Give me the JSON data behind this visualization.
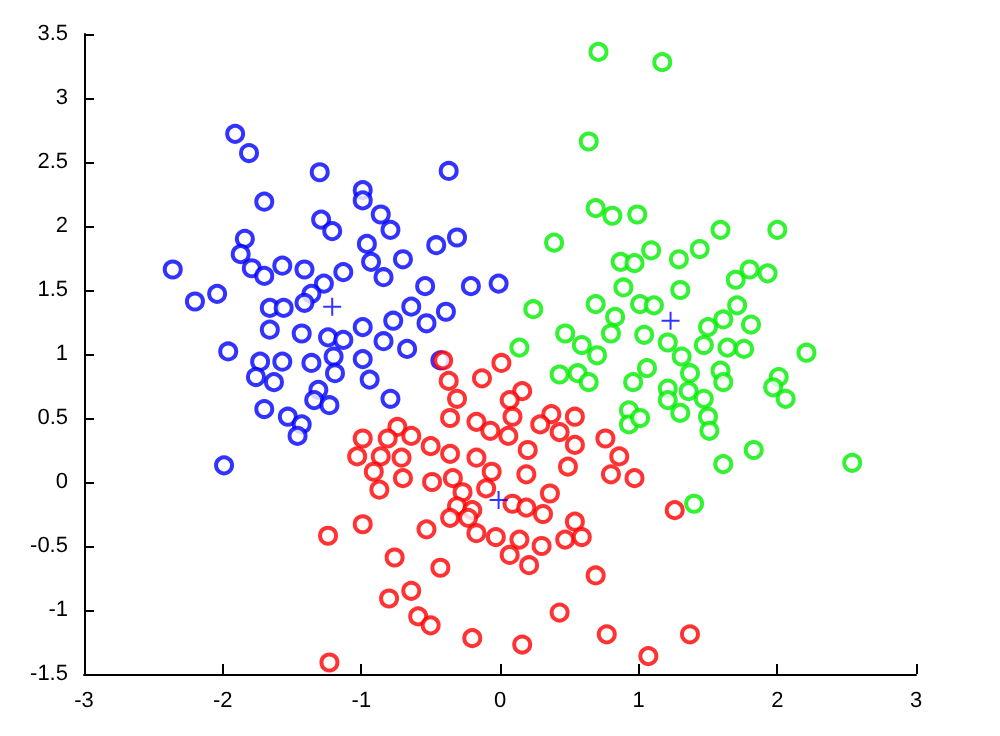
{
  "chart_data": {
    "type": "scatter",
    "xlim": [
      -3,
      3
    ],
    "ylim": [
      -1.5,
      3.5
    ],
    "xticks": [
      -3,
      -2,
      -1,
      0,
      1,
      2,
      3
    ],
    "yticks": [
      -1.5,
      -1,
      -0.5,
      0,
      0.5,
      1,
      1.5,
      2,
      2.5,
      3,
      3.5
    ],
    "marker": "circle",
    "series": [
      {
        "color": "#0000ff",
        "x": [
          -1.91,
          -1.81,
          -1.3,
          -0.37,
          -1.7,
          -0.99,
          -0.99,
          -0.86,
          -1.29,
          -1.21,
          -0.79,
          -1.84,
          -1.87,
          -0.96,
          -0.7,
          -0.46,
          -0.31,
          -2.36,
          -1.79,
          -1.57,
          -1.41,
          -1.13,
          -0.93,
          -0.84,
          -1.7,
          -2.2,
          -2.04,
          -0.21,
          -0.01,
          -0.54,
          -1.27,
          -1.36,
          -1.66,
          -1.56,
          -1.41,
          -0.64,
          -0.39,
          -1.66,
          -1.43,
          -1.24,
          -0.99,
          -0.77,
          -0.53,
          -1.13,
          -0.84,
          -0.67,
          -1.96,
          -1.73,
          -1.57,
          -1.36,
          -1.2,
          -0.99,
          -0.43,
          -1.76,
          -1.63,
          -1.19,
          -0.94,
          -1.31,
          -0.79,
          -1.34,
          -1.23,
          -1.7,
          -1.53,
          -1.43,
          -1.46,
          -1.99
        ],
        "values": [
          2.72,
          2.57,
          2.42,
          2.43,
          2.19,
          2.28,
          2.2,
          2.09,
          2.05,
          1.96,
          1.97,
          1.9,
          1.78,
          1.86,
          1.74,
          1.85,
          1.91,
          1.66,
          1.67,
          1.69,
          1.66,
          1.64,
          1.72,
          1.6,
          1.61,
          1.41,
          1.47,
          1.53,
          1.55,
          1.53,
          1.55,
          1.47,
          1.36,
          1.36,
          1.4,
          1.37,
          1.33,
          1.19,
          1.16,
          1.13,
          1.21,
          1.26,
          1.24,
          1.11,
          1.1,
          1.04,
          1.02,
          0.94,
          0.94,
          0.93,
          0.98,
          0.96,
          0.95,
          0.82,
          0.78,
          0.85,
          0.8,
          0.72,
          0.65,
          0.64,
          0.6,
          0.57,
          0.51,
          0.45,
          0.36,
          0.13
        ]
      },
      {
        "color": "#ff0000",
        "x": [
          0.01,
          -0.41,
          -0.13,
          -0.37,
          0.16,
          -0.31,
          0.07,
          -0.17,
          -0.36,
          0.09,
          0.37,
          0.54,
          0.29,
          -0.07,
          -0.74,
          -0.99,
          -0.81,
          -0.64,
          -0.5,
          0.06,
          0.2,
          0.43,
          0.54,
          0.76,
          0.86,
          -1.03,
          -0.86,
          -0.71,
          -0.36,
          -0.17,
          0.49,
          0.8,
          0.97,
          -0.91,
          -0.7,
          -0.49,
          -0.34,
          -0.06,
          0.19,
          -0.87,
          -0.27,
          -0.1,
          0.36,
          -0.31,
          0.09,
          0.19,
          -0.2,
          0.31,
          1.26,
          -0.36,
          -0.23,
          0.54,
          -0.99,
          -1.24,
          -0.53,
          -0.17,
          -0.03,
          0.14,
          0.47,
          0.59,
          0.3,
          0.07,
          0.21,
          -0.76,
          -0.43,
          0.69,
          -0.64,
          -0.8,
          -0.59,
          -0.5,
          0.43,
          -0.2,
          0.16,
          0.77,
          1.37,
          1.07,
          -1.23
        ],
        "values": [
          0.93,
          0.95,
          0.81,
          0.79,
          0.71,
          0.65,
          0.64,
          0.47,
          0.5,
          0.51,
          0.53,
          0.51,
          0.45,
          0.4,
          0.43,
          0.34,
          0.34,
          0.36,
          0.28,
          0.36,
          0.25,
          0.39,
          0.29,
          0.34,
          0.2,
          0.2,
          0.2,
          0.19,
          0.22,
          0.19,
          0.12,
          0.06,
          0.03,
          0.08,
          0.03,
          0,
          0.03,
          0.08,
          0.06,
          -0.06,
          -0.08,
          -0.05,
          -0.09,
          -0.19,
          -0.17,
          -0.2,
          -0.22,
          -0.25,
          -0.22,
          -0.28,
          -0.28,
          -0.31,
          -0.33,
          -0.42,
          -0.37,
          -0.4,
          -0.43,
          -0.45,
          -0.45,
          -0.43,
          -0.5,
          -0.57,
          -0.65,
          -0.59,
          -0.67,
          -0.73,
          -0.85,
          -0.91,
          -1.05,
          -1.12,
          -1.02,
          -1.22,
          -1.27,
          -1.19,
          -1.19,
          -1.36,
          -1.41
        ]
      },
      {
        "color": "#00ee00",
        "x": [
          0.71,
          1.17,
          0.64,
          0.69,
          0.81,
          0.99,
          0.39,
          1.59,
          2.0,
          1.44,
          1.09,
          0.87,
          0.97,
          1.29,
          1.7,
          1.8,
          1.93,
          1.3,
          0.24,
          0.69,
          0.89,
          1.01,
          1.11,
          1.71,
          0.83,
          1.61,
          1.81,
          0.47,
          0.8,
          1.04,
          1.21,
          1.5,
          1.47,
          1.64,
          1.76,
          0.14,
          0.59,
          0.7,
          2.21,
          1.06,
          1.31,
          0.43,
          0.56,
          0.64,
          0.96,
          1.37,
          1.59,
          1.61,
          2.01,
          1.21,
          1.36,
          1.97,
          2.06,
          1.21,
          1.47,
          0.93,
          1.3,
          0.93,
          1.01,
          1.5,
          1.51,
          1.83,
          1.61,
          2.54,
          1.4
        ],
        "values": [
          3.36,
          3.28,
          2.66,
          2.14,
          2.08,
          2.09,
          1.87,
          1.97,
          1.97,
          1.82,
          1.81,
          1.72,
          1.71,
          1.74,
          1.58,
          1.66,
          1.63,
          1.5,
          1.35,
          1.39,
          1.52,
          1.39,
          1.38,
          1.38,
          1.29,
          1.27,
          1.23,
          1.16,
          1.16,
          1.15,
          1.09,
          1.21,
          1.07,
          1.05,
          1.04,
          1.05,
          1.07,
          0.99,
          1.01,
          0.89,
          0.98,
          0.84,
          0.85,
          0.78,
          0.78,
          0.85,
          0.87,
          0.78,
          0.82,
          0.73,
          0.71,
          0.74,
          0.65,
          0.64,
          0.65,
          0.56,
          0.54,
          0.45,
          0.5,
          0.51,
          0.4,
          0.25,
          0.14,
          0.15,
          -0.17
        ]
      },
      {
        "color": "#0000ff",
        "marker": "cross",
        "x": [
          -1.21,
          -0.01,
          1.23
        ],
        "values": [
          1.37,
          -0.14,
          1.26
        ]
      }
    ]
  }
}
